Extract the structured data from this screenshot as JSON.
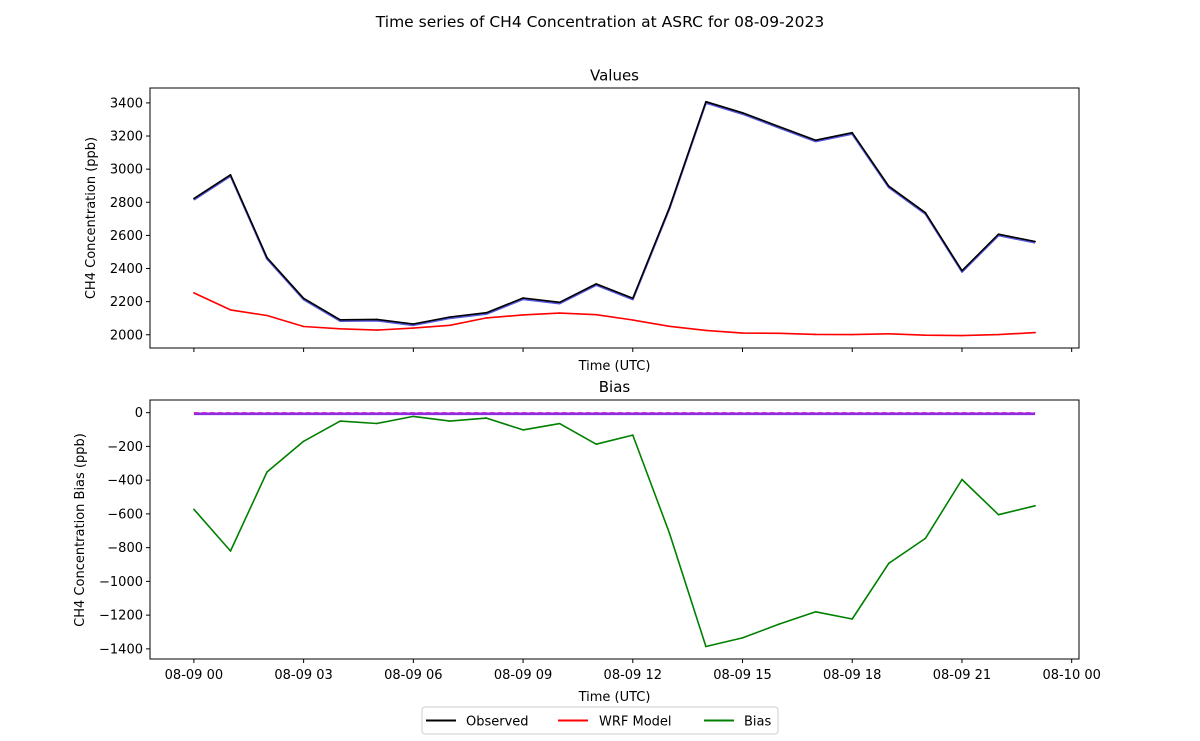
{
  "figure": {
    "title": "Time series of CH4 Concentration at ASRC for 08-09-2023"
  },
  "colors": {
    "observed": "#000000",
    "wrf_model": "#ff0000",
    "bias": "#008000",
    "observed_shadow": "#5555dd",
    "zero_line": "#cc33cc",
    "zero_band": "#8a2be2"
  },
  "legend": {
    "placement": "bottom-center",
    "entries": [
      {
        "label": "Observed",
        "color_key": "observed"
      },
      {
        "label": "WRF Model",
        "color_key": "wrf_model"
      },
      {
        "label": "Bias",
        "color_key": "bias"
      }
    ]
  },
  "chart_data": [
    {
      "type": "line",
      "title": "Values",
      "xlabel": "Time (UTC)",
      "ylabel": "CH4 Concentration (ppb)",
      "x": [
        "08-09 00:00",
        "08-09 01:00",
        "08-09 02:00",
        "08-09 03:00",
        "08-09 04:00",
        "08-09 05:00",
        "08-09 06:00",
        "08-09 07:00",
        "08-09 08:00",
        "08-09 09:00",
        "08-09 10:00",
        "08-09 11:00",
        "08-09 12:00",
        "08-09 13:00",
        "08-09 14:00",
        "08-09 15:00",
        "08-09 16:00",
        "08-09 17:00",
        "08-09 18:00",
        "08-09 19:00",
        "08-09 20:00",
        "08-09 21:00",
        "08-09 22:00",
        "08-09 23:00"
      ],
      "xlim": [
        "08-08 22:48",
        "08-10 00:12"
      ],
      "ylim": [
        1920,
        3490
      ],
      "yticks": [
        2000,
        2200,
        2400,
        2600,
        2800,
        3000,
        3200,
        3400
      ],
      "xtick_labels_shown": false,
      "series": [
        {
          "name": "Observed",
          "color_key": "observed",
          "values": [
            2822,
            2966,
            2466,
            2220,
            2090,
            2093,
            2065,
            2107,
            2133,
            2222,
            2196,
            2307,
            2220,
            2767,
            3407,
            3340,
            3257,
            3175,
            3220,
            2897,
            2737,
            2387,
            2607,
            2563
          ]
        },
        {
          "name": "WRF Model",
          "color_key": "wrf_model",
          "values": [
            2253,
            2150,
            2116,
            2050,
            2036,
            2028,
            2040,
            2057,
            2102,
            2120,
            2131,
            2121,
            2089,
            2051,
            2026,
            2010,
            2009,
            2002,
            2001,
            2006,
            1997,
            1995,
            2001,
            2013
          ]
        }
      ]
    },
    {
      "type": "line",
      "title": "Bias",
      "xlabel": "Time (UTC)",
      "ylabel": "CH4 Concentration Bias (ppb)",
      "x": [
        "08-09 00:00",
        "08-09 01:00",
        "08-09 02:00",
        "08-09 03:00",
        "08-09 04:00",
        "08-09 05:00",
        "08-09 06:00",
        "08-09 07:00",
        "08-09 08:00",
        "08-09 09:00",
        "08-09 10:00",
        "08-09 11:00",
        "08-09 12:00",
        "08-09 13:00",
        "08-09 14:00",
        "08-09 15:00",
        "08-09 16:00",
        "08-09 17:00",
        "08-09 18:00",
        "08-09 19:00",
        "08-09 20:00",
        "08-09 21:00",
        "08-09 22:00",
        "08-09 23:00"
      ],
      "xlim": [
        "08-08 22:48",
        "08-10 00:12"
      ],
      "ylim": [
        -1460,
        75
      ],
      "yticks": [
        -1400,
        -1200,
        -1000,
        -800,
        -600,
        -400,
        -200,
        0
      ],
      "xtick_positions": [
        "08-09 00:00",
        "08-09 03:00",
        "08-09 06:00",
        "08-09 09:00",
        "08-09 12:00",
        "08-09 15:00",
        "08-09 18:00",
        "08-09 21:00",
        "08-10 00:00"
      ],
      "xtick_labels": [
        "08-09 00",
        "08-09 03",
        "08-09 06",
        "08-09 09",
        "08-09 12",
        "08-09 15",
        "08-09 18",
        "08-09 21",
        "08-10 00"
      ],
      "reference_line": 0,
      "series": [
        {
          "name": "Bias",
          "color_key": "bias",
          "values": [
            -573,
            -820,
            -352,
            -170,
            -50,
            -64,
            -22,
            -50,
            -32,
            -102,
            -65,
            -187,
            -133,
            -713,
            -1386,
            -1335,
            -1253,
            -1180,
            -1223,
            -893,
            -745,
            -396,
            -605,
            -552
          ]
        }
      ]
    }
  ]
}
